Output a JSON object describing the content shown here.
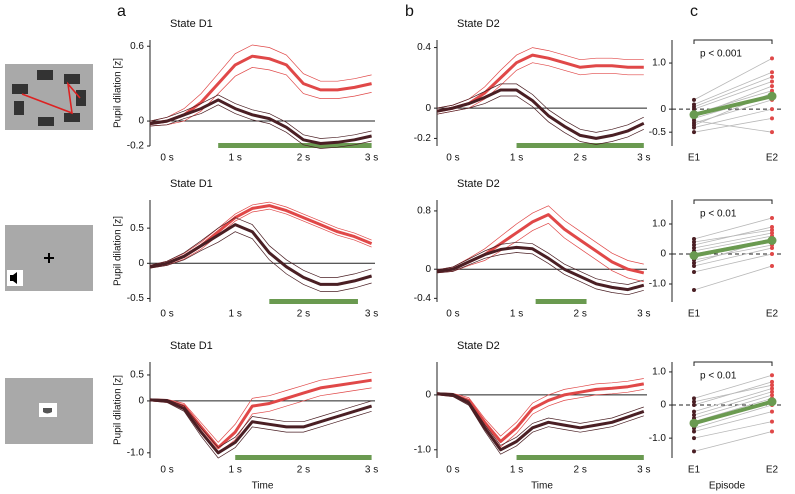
{
  "chart_data": [
    {
      "type": "line",
      "panel": "a",
      "title": "State D1",
      "ylabel": "Pupil dilation [z]",
      "x": [
        -0.25,
        0,
        0.25,
        0.5,
        0.75,
        1,
        1.25,
        1.5,
        1.75,
        2,
        2.25,
        2.5,
        2.75,
        3
      ],
      "series": [
        {
          "color": "#e04848",
          "values": [
            -0.02,
            0,
            0.05,
            0.15,
            0.3,
            0.45,
            0.52,
            0.5,
            0.45,
            0.3,
            0.25,
            0.25,
            0.27,
            0.3
          ],
          "error": [
            0.02,
            0.03,
            0.05,
            0.07,
            0.08,
            0.09,
            0.09,
            0.09,
            0.08,
            0.08,
            0.07,
            0.07,
            0.07,
            0.07
          ]
        },
        {
          "color": "#4a1f24",
          "values": [
            -0.02,
            0,
            0.05,
            0.1,
            0.17,
            0.1,
            0.05,
            0.02,
            -0.05,
            -0.15,
            -0.18,
            -0.17,
            -0.15,
            -0.12
          ],
          "error": [
            0.02,
            0.03,
            0.03,
            0.04,
            0.04,
            0.04,
            0.04,
            0.04,
            0.04,
            0.04,
            0.04,
            0.04,
            0.04,
            0.04
          ]
        }
      ],
      "xlim": [
        -0.25,
        3.05
      ],
      "xticks": [
        {
          "value": 0,
          "label": "0 s"
        },
        {
          "value": 1,
          "label": "1 s"
        },
        {
          "value": 2,
          "label": "2 s"
        },
        {
          "value": 3,
          "label": "3 s"
        }
      ],
      "ylim": [
        -0.2,
        0.65
      ],
      "yticks": [
        -0.2,
        0,
        0.6
      ],
      "significance": [
        0.75,
        3.0
      ],
      "significance_color": "#6a9a50"
    },
    {
      "type": "line",
      "panel": "b",
      "title": "State D2",
      "x": [
        -0.25,
        0,
        0.25,
        0.5,
        0.75,
        1,
        1.25,
        1.5,
        1.75,
        2,
        2.25,
        2.5,
        2.75,
        3
      ],
      "series": [
        {
          "color": "#e04848",
          "values": [
            -0.02,
            0,
            0.03,
            0.1,
            0.2,
            0.3,
            0.35,
            0.33,
            0.3,
            0.27,
            0.28,
            0.28,
            0.27,
            0.27
          ],
          "error": [
            0.02,
            0.02,
            0.03,
            0.04,
            0.05,
            0.05,
            0.05,
            0.05,
            0.05,
            0.05,
            0.05,
            0.05,
            0.05,
            0.05
          ]
        },
        {
          "color": "#4a1f24",
          "values": [
            -0.02,
            0,
            0.03,
            0.07,
            0.12,
            0.12,
            0.05,
            -0.05,
            -0.12,
            -0.18,
            -0.2,
            -0.18,
            -0.15,
            -0.1
          ],
          "error": [
            0.02,
            0.02,
            0.03,
            0.04,
            0.04,
            0.04,
            0.04,
            0.04,
            0.04,
            0.04,
            0.04,
            0.04,
            0.04,
            0.04
          ]
        }
      ],
      "xlim": [
        -0.25,
        3.05
      ],
      "xticks": [
        {
          "value": 0,
          "label": "0 s"
        },
        {
          "value": 1,
          "label": "1 s"
        },
        {
          "value": 2,
          "label": "2 s"
        },
        {
          "value": 3,
          "label": "3 s"
        }
      ],
      "ylim": [
        -0.25,
        0.45
      ],
      "yticks": [
        -0.2,
        0,
        0.4
      ],
      "significance": [
        1.0,
        3.0
      ],
      "significance_color": "#6a9a50"
    },
    {
      "type": "paired",
      "panel": "c",
      "categories": [
        "E1",
        "E2"
      ],
      "pairs": [
        [
          0.2,
          1.1
        ],
        [
          0.1,
          0.8
        ],
        [
          0,
          0.6
        ],
        [
          -0.1,
          0.4
        ],
        [
          -0.2,
          0.3
        ],
        [
          -0.3,
          0.2
        ],
        [
          -0.4,
          0
        ],
        [
          -0.5,
          -0.2
        ],
        [
          -0.15,
          0.5
        ],
        [
          0.05,
          0.7
        ],
        [
          -0.25,
          -0.5
        ],
        [
          -0.35,
          0.35
        ]
      ],
      "dot_colors": [
        "#4a1f24",
        "#e04848"
      ],
      "pair_color": "#b8b8b8",
      "mean": [
        -0.12,
        0.28
      ],
      "mean_color": "#6a9a50",
      "annotation": "p < 0.001",
      "ylim": [
        -0.8,
        1.5
      ],
      "yticks": [
        -0.5,
        0,
        {
          "value": 1,
          "label": "1.0"
        }
      ]
    },
    {
      "type": "line",
      "title": "State D1",
      "ylabel": "Pupil dilation [z]",
      "x": [
        -0.25,
        0,
        0.25,
        0.5,
        0.75,
        1,
        1.25,
        1.5,
        1.75,
        2,
        2.25,
        2.5,
        2.75,
        3
      ],
      "series": [
        {
          "color": "#e04848",
          "values": [
            -0.05,
            0,
            0.1,
            0.25,
            0.45,
            0.65,
            0.78,
            0.82,
            0.75,
            0.65,
            0.55,
            0.45,
            0.38,
            0.28
          ],
          "error": [
            0.02,
            0.03,
            0.04,
            0.05,
            0.05,
            0.05,
            0.05,
            0.05,
            0.05,
            0.05,
            0.05,
            0.05,
            0.05,
            0.05
          ]
        },
        {
          "color": "#4a1f24",
          "values": [
            -0.05,
            0,
            0.1,
            0.25,
            0.4,
            0.55,
            0.45,
            0.15,
            -0.05,
            -0.2,
            -0.3,
            -0.3,
            -0.25,
            -0.18
          ],
          "error": [
            0.02,
            0.03,
            0.05,
            0.07,
            0.1,
            0.1,
            0.1,
            0.1,
            0.1,
            0.1,
            0.1,
            0.1,
            0.1,
            0.1
          ]
        }
      ],
      "xlim": [
        -0.25,
        3.05
      ],
      "xticks": [
        {
          "value": 0,
          "label": "0 s"
        },
        {
          "value": 1,
          "label": "1 s"
        },
        {
          "value": 2,
          "label": "2 s"
        },
        {
          "value": 3,
          "label": "3 s"
        }
      ],
      "ylim": [
        -0.55,
        0.9
      ],
      "yticks": [
        -0.5,
        0,
        0.5
      ],
      "significance": [
        1.5,
        2.8
      ],
      "significance_color": "#6a9a50"
    },
    {
      "type": "line",
      "title": "State D2",
      "x": [
        -0.25,
        0,
        0.25,
        0.5,
        0.75,
        1,
        1.25,
        1.5,
        1.75,
        2,
        2.25,
        2.5,
        2.75,
        3
      ],
      "series": [
        {
          "color": "#e04848",
          "values": [
            -0.03,
            0,
            0.1,
            0.2,
            0.35,
            0.5,
            0.65,
            0.75,
            0.55,
            0.4,
            0.25,
            0.1,
            0,
            -0.05
          ],
          "error": [
            0.02,
            0.03,
            0.05,
            0.08,
            0.1,
            0.12,
            0.12,
            0.12,
            0.12,
            0.12,
            0.12,
            0.12,
            0.12,
            0.12
          ]
        },
        {
          "color": "#4a1f24",
          "values": [
            -0.03,
            0,
            0.1,
            0.2,
            0.27,
            0.3,
            0.28,
            0.15,
            0,
            -0.1,
            -0.2,
            -0.25,
            -0.28,
            -0.22
          ],
          "error": [
            0.02,
            0.03,
            0.04,
            0.05,
            0.07,
            0.07,
            0.07,
            0.07,
            0.07,
            0.07,
            0.07,
            0.07,
            0.07,
            0.07
          ]
        }
      ],
      "xlim": [
        -0.25,
        3.05
      ],
      "xticks": [
        {
          "value": 0,
          "label": "0 s"
        },
        {
          "value": 1,
          "label": "1 s"
        },
        {
          "value": 2,
          "label": "2 s"
        },
        {
          "value": 3,
          "label": "3 s"
        }
      ],
      "ylim": [
        -0.45,
        0.95
      ],
      "yticks": [
        -0.4,
        0,
        0.8
      ],
      "significance": [
        1.3,
        2.1
      ],
      "significance_color": "#6a9a50"
    },
    {
      "type": "paired",
      "categories": [
        "E1",
        "E2"
      ],
      "pairs": [
        [
          0.5,
          1.2
        ],
        [
          0.3,
          0.9
        ],
        [
          0.2,
          0.7
        ],
        [
          0.1,
          0.6
        ],
        [
          0,
          0.5
        ],
        [
          -0.1,
          0.4
        ],
        [
          -0.2,
          0.3
        ],
        [
          -0.4,
          0.2
        ],
        [
          -0.6,
          0
        ],
        [
          -1.2,
          -0.4
        ],
        [
          0.4,
          0.8
        ],
        [
          -0.3,
          0.5
        ]
      ],
      "dot_colors": [
        "#4a1f24",
        "#e04848"
      ],
      "pair_color": "#b8b8b8",
      "mean": [
        -0.05,
        0.45
      ],
      "mean_color": "#6a9a50",
      "annotation": "p < 0.01",
      "ylim": [
        -1.6,
        1.8
      ],
      "yticks": [
        {
          "value": -1,
          "label": "-1.0"
        },
        0,
        {
          "value": 1,
          "label": "1.0"
        }
      ]
    },
    {
      "type": "line",
      "title": "State D1",
      "ylabel": "Pupil dilation [z]",
      "xlabel": "Time",
      "x": [
        -0.25,
        0,
        0.25,
        0.5,
        0.75,
        1,
        1.25,
        1.5,
        1.75,
        2,
        2.25,
        2.5,
        2.75,
        3
      ],
      "series": [
        {
          "color": "#e04848",
          "values": [
            0.02,
            0,
            -0.1,
            -0.5,
            -0.9,
            -0.6,
            -0.1,
            -0.05,
            0.05,
            0.15,
            0.25,
            0.3,
            0.35,
            0.4
          ],
          "error": [
            0.02,
            0.03,
            0.05,
            0.08,
            0.1,
            0.15,
            0.15,
            0.15,
            0.15,
            0.15,
            0.15,
            0.15,
            0.15,
            0.15
          ]
        },
        {
          "color": "#4a1f24",
          "values": [
            0.02,
            0,
            -0.15,
            -0.6,
            -1,
            -0.8,
            -0.4,
            -0.45,
            -0.5,
            -0.5,
            -0.4,
            -0.3,
            -0.2,
            -0.1
          ],
          "error": [
            0.02,
            0.03,
            0.05,
            0.08,
            0.1,
            0.1,
            0.1,
            0.1,
            0.1,
            0.1,
            0.1,
            0.1,
            0.1,
            0.1
          ]
        }
      ],
      "xlim": [
        -0.25,
        3.05
      ],
      "xticks": [
        {
          "value": 0,
          "label": "0 s"
        },
        {
          "value": 1,
          "label": "1 s"
        },
        {
          "value": 2,
          "label": "2 s"
        },
        {
          "value": 3,
          "label": "3 s"
        }
      ],
      "ylim": [
        -1.1,
        0.75
      ],
      "yticks": [
        {
          "value": -1,
          "label": "-1.0"
        },
        0,
        0.5
      ],
      "significance": [
        1.0,
        3.0
      ],
      "significance_color": "#6a9a50"
    },
    {
      "type": "line",
      "title": "State D2",
      "xlabel": "Time",
      "x": [
        -0.25,
        0,
        0.25,
        0.5,
        0.75,
        1,
        1.25,
        1.5,
        1.75,
        2,
        2.25,
        2.5,
        2.75,
        3
      ],
      "series": [
        {
          "color": "#e04848",
          "values": [
            0.02,
            0,
            -0.1,
            -0.5,
            -0.85,
            -0.6,
            -0.25,
            -0.1,
            0,
            0.05,
            0.1,
            0.12,
            0.15,
            0.2
          ],
          "error": [
            0.02,
            0.03,
            0.05,
            0.07,
            0.1,
            0.1,
            0.1,
            0.1,
            0.1,
            0.1,
            0.1,
            0.1,
            0.1,
            0.1
          ]
        },
        {
          "color": "#4a1f24",
          "values": [
            0.02,
            0,
            -0.15,
            -0.6,
            -1,
            -0.85,
            -0.6,
            -0.5,
            -0.55,
            -0.6,
            -0.55,
            -0.5,
            -0.4,
            -0.3
          ],
          "error": [
            0.02,
            0.03,
            0.04,
            0.06,
            0.08,
            0.08,
            0.08,
            0.08,
            0.08,
            0.08,
            0.08,
            0.08,
            0.08,
            0.08
          ]
        }
      ],
      "xlim": [
        -0.25,
        3.05
      ],
      "xticks": [
        {
          "value": 0,
          "label": "0 s"
        },
        {
          "value": 1,
          "label": "1 s"
        },
        {
          "value": 2,
          "label": "2 s"
        },
        {
          "value": 3,
          "label": "3 s"
        }
      ],
      "ylim": [
        -1.15,
        0.6
      ],
      "yticks": [
        {
          "value": -1,
          "label": "-1.0"
        },
        0
      ],
      "significance": [
        1.0,
        3.0
      ],
      "significance_color": "#6a9a50"
    },
    {
      "type": "paired",
      "categories": [
        "E1",
        "E2"
      ],
      "xlabel": "Episode",
      "pairs": [
        [
          0.2,
          0.9
        ],
        [
          0,
          0.7
        ],
        [
          -0.2,
          0.5
        ],
        [
          -0.4,
          0.3
        ],
        [
          -0.5,
          0.2
        ],
        [
          -0.6,
          0.1
        ],
        [
          -0.8,
          -0.2
        ],
        [
          -1,
          -0.5
        ],
        [
          -1.4,
          -0.8
        ],
        [
          -0.3,
          0.4
        ],
        [
          -0.7,
          0
        ],
        [
          0.1,
          0.6
        ]
      ],
      "dot_colors": [
        "#4a1f24",
        "#e04848"
      ],
      "pair_color": "#b8b8b8",
      "mean": [
        -0.55,
        0.1
      ],
      "mean_color": "#6a9a50",
      "annotation": "p < 0.01",
      "ylim": [
        -1.6,
        1.3
      ],
      "yticks": [
        {
          "value": -1,
          "label": "-1.0"
        },
        0,
        {
          "value": 1,
          "label": "1.0"
        }
      ]
    }
  ]
}
